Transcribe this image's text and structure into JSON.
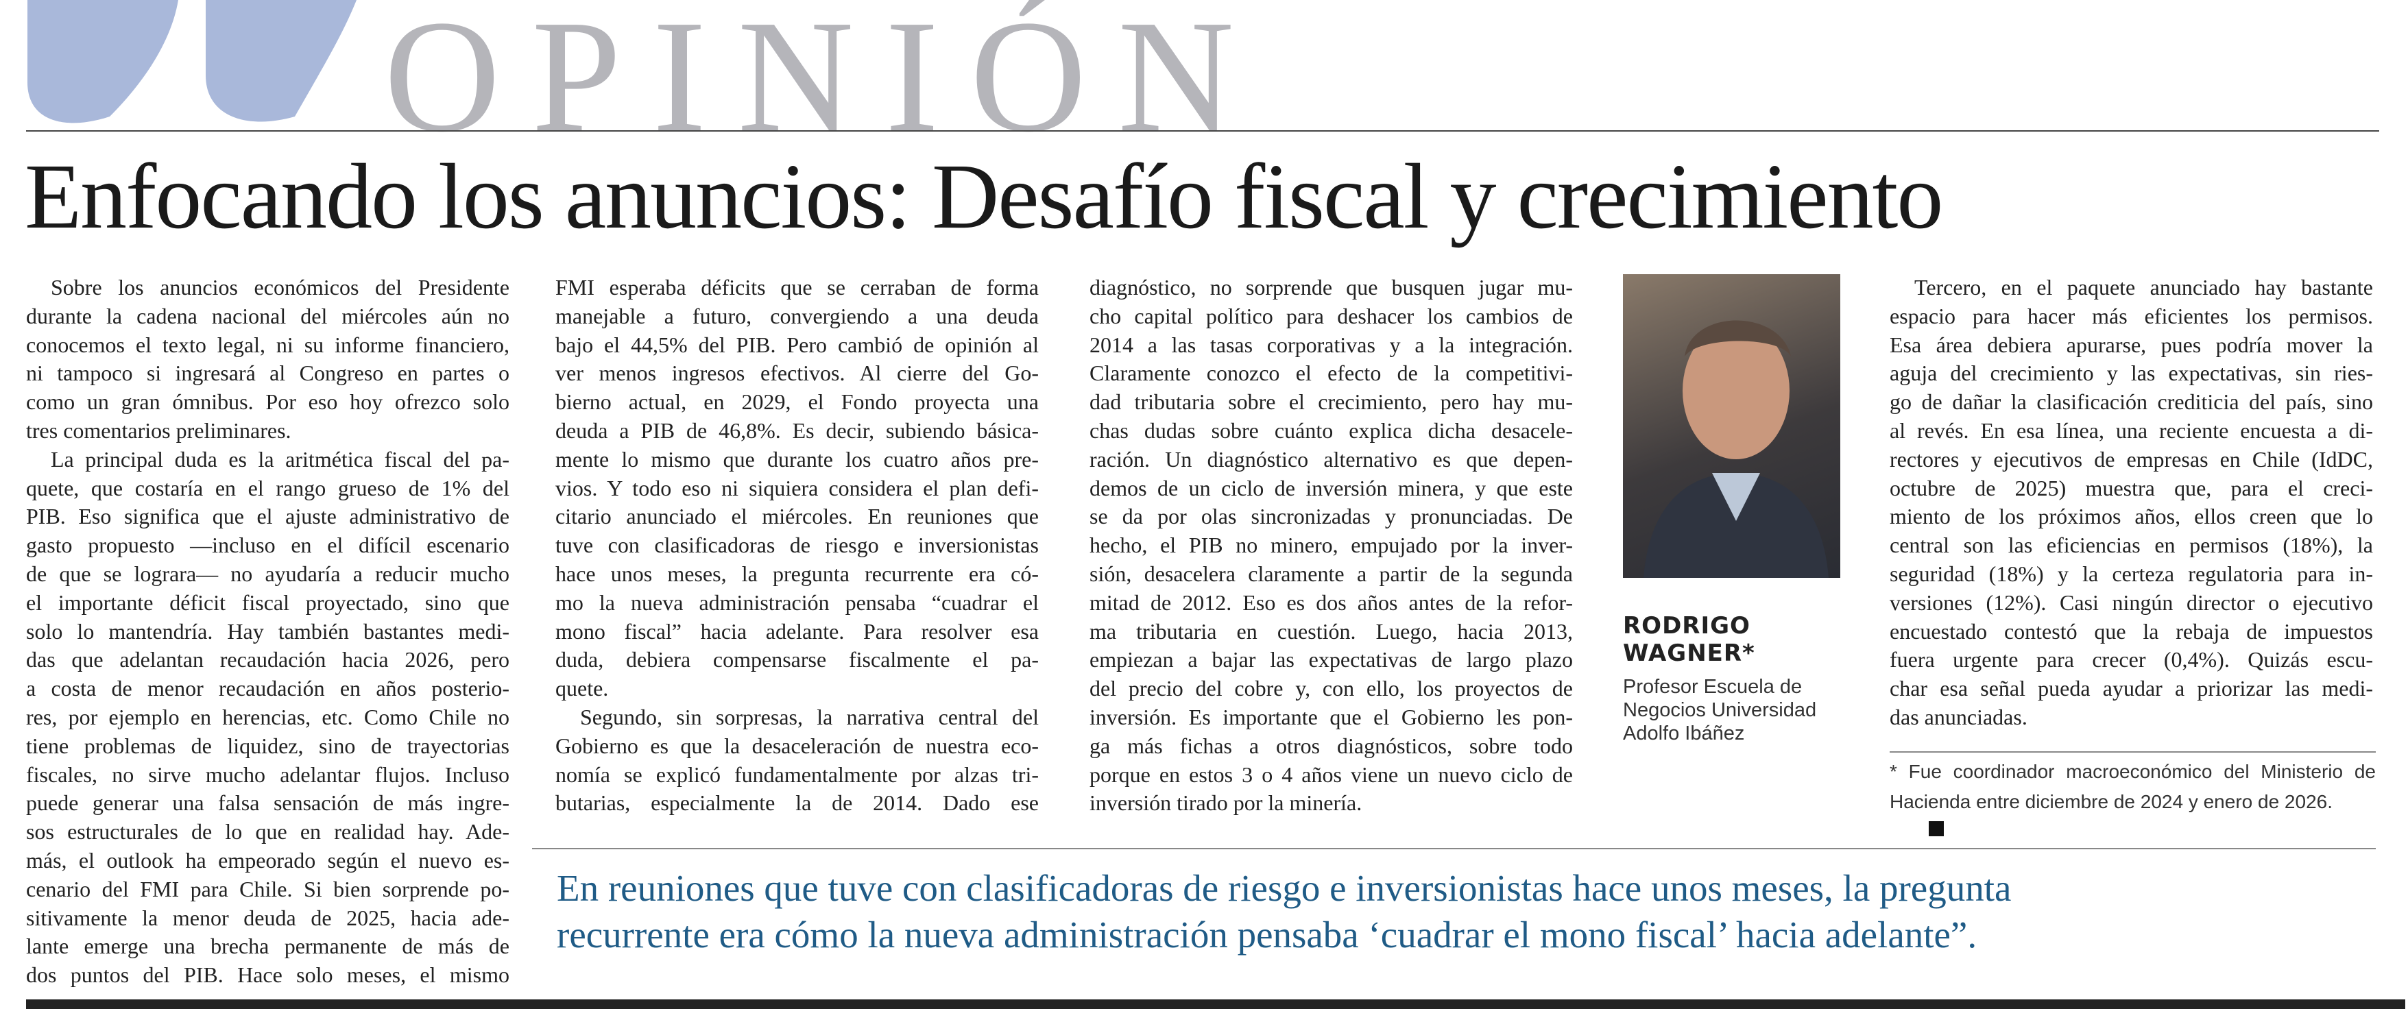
{
  "section": "OPINIÓN",
  "headline": "Enfocando los anuncios: Desafío fiscal y crecimiento",
  "columns": [
    [
      [
        "Sobre los anuncios económicos del Presidente",
        "durante la cadena nacional del miércoles aún no",
        "conocemos el texto legal, ni su informe financiero,",
        "ni tampoco si ingresará al Congreso en partes o",
        "como un gran ómnibus. Por eso hoy ofrezco solo",
        "tres comentarios preliminares."
      ],
      [
        "La principal duda es la aritmética fiscal del pa-",
        "quete, que costaría en el rango grueso de 1% del",
        "PIB. Eso significa que el ajuste administrativo de",
        "gasto propuesto —incluso en el difícil escenario",
        "de que se lograra— no ayudaría a reducir mucho",
        "el importante déficit fiscal proyectado, sino que",
        "solo lo mantendría. Hay también bastantes medi-",
        "das que adelantan recaudación hacia 2026, pero",
        "a costa de menor recaudación en años posterio-",
        "res, por ejemplo en herencias, etc. Como Chile no",
        "tiene problemas de liquidez, sino de trayectorias",
        "fiscales, no sirve mucho adelantar flujos. Incluso",
        "puede generar una falsa sensación de más ingre-",
        "sos estructurales de lo que en realidad hay. Ade-",
        "más, el outlook ha empeorado según el nuevo es-",
        "cenario del FMI para Chile. Si bien sorprende po-",
        "sitivamente la menor deuda de 2025, hacia ade-",
        "lante emerge una brecha permanente de más de",
        "dos puntos del PIB. Hace solo meses, el mismo"
      ]
    ],
    [
      [
        "FMI esperaba déficits que se cerraban de forma",
        "manejable a futuro, convergiendo a una deuda",
        "bajo el 44,5% del PIB. Pero cambió de opinión al",
        "ver menos ingresos efectivos. Al cierre del Go-",
        "bierno actual, en 2029, el Fondo proyecta una",
        "deuda a PIB de 46,8%. Es decir, subiendo básica-",
        "mente lo mismo que durante los cuatro años pre-",
        "vios. Y todo eso ni siquiera considera el plan defi-",
        "citario anunciado el miércoles. En reuniones que",
        "tuve con clasificadoras de riesgo e inversionistas",
        "hace unos meses, la pregunta recurrente era có-",
        "mo la nueva administración pensaba “cuadrar el",
        "mono fiscal” hacia adelante. Para resolver esa",
        "duda, debiera compensarse fiscalmente el pa-",
        "quete."
      ],
      [
        "Segundo, sin sorpresas, la narrativa central del",
        "Gobierno es que la desaceleración de nuestra eco-",
        "nomía se explicó fundamentalmente por alzas tri-",
        "butarias, especialmente la de 2014. Dado ese"
      ]
    ],
    [
      [
        "diagnóstico, no sorprende que busquen jugar mu-",
        "cho capital político para deshacer los cambios de",
        "2014 a las tasas corporativas y a la integración.",
        "Claramente conozco el efecto de la competitivi-",
        "dad tributaria sobre el crecimiento, pero hay mu-",
        "chas dudas sobre cuánto explica dicha desacele-",
        "ración. Un diagnóstico alternativo es que depen-",
        "demos de un ciclo de inversión minera, y que este",
        "se da por olas sincronizadas y pronunciadas. De",
        "hecho, el PIB no minero, empujado por la inver-",
        "sión, desacelera claramente a partir de la segunda",
        "mitad de 2012. Eso es dos años antes de la refor-",
        "ma tributaria en cuestión. Luego, hacia 2013,",
        "empiezan a bajar las expectativas de largo plazo",
        "del precio del cobre y, con ello, los proyectos de",
        "inversión. Es importante que el Gobierno les pon-",
        "ga más fichas a otros diagnósticos, sobre todo",
        "porque en estos 3 o 4 años viene un nuevo ciclo de",
        "inversión tirado por la minería."
      ]
    ],
    [
      [
        "Tercero, en el paquete anunciado hay bastante",
        "espacio para hacer más eficientes los permisos.",
        "Esa área debiera apurarse, pues podría mover la",
        "aguja del crecimiento y las expectativas, sin ries-",
        "go de dañar la clasificación crediticia del país, sino",
        "al revés. En esa línea, una reciente encuesta a di-",
        "rectores y ejecutivos de empresas en Chile (IdDC,",
        "octubre de 2025) muestra que, para el creci-",
        "miento de los próximos años, ellos creen que lo",
        "central son las eficiencias en permisos (18%), la",
        "seguridad (18%) y la certeza regulatoria para in-",
        "versiones (12%). Casi ningún director o ejecutivo",
        "encuestado contestó que la rebaja de impuestos",
        "fuera urgente para crecer (0,4%). Quizás escu-",
        "char esa señal pueda ayudar a priorizar las medi-",
        "das anunciadas."
      ]
    ]
  ],
  "author": {
    "name": [
      "RODRIGO",
      "WAGNER*"
    ],
    "bio": [
      "Profesor Escuela de",
      "Negocios Universidad",
      "Adolfo Ibáñez"
    ]
  },
  "footnote": [
    "* Fue coordinador macroeconómico del Ministerio de",
    "Hacienda entre diciembre de 2024 y enero de 2026."
  ],
  "pull_quote": [
    "En reuniones que tuve con clasificadoras de riesgo e inversionistas hace unos meses, la pregunta",
    "recurrente era cómo la nueva administración pensaba ‘cuadrar el mono fiscal’ hacia adelante”."
  ]
}
